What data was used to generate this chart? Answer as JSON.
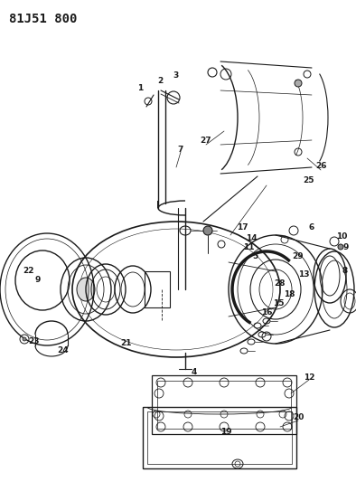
{
  "title": "81J51 800",
  "bg_color": "#ffffff",
  "line_color": "#1a1a1a",
  "fig_width": 3.94,
  "fig_height": 5.33,
  "dpi": 100,
  "label_fontsize": 6.5,
  "title_fontsize": 10
}
